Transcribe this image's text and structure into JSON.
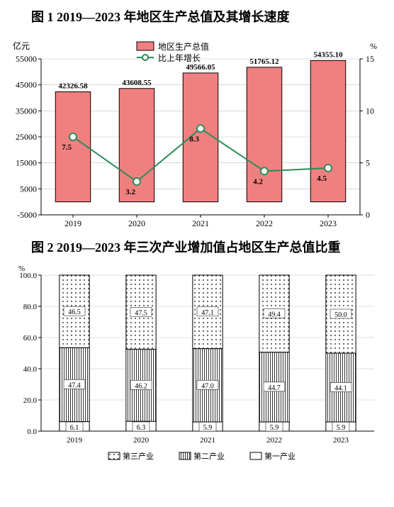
{
  "chart1": {
    "title": "图 1 2019—2023 年地区生产总值及其增长速度",
    "type": "bar+line",
    "yleft_label": "亿元",
    "yright_label": "%",
    "categories": [
      "2019",
      "2020",
      "2021",
      "2022",
      "2023"
    ],
    "bar_values": [
      42326.58,
      43608.55,
      49566.05,
      51765.12,
      54355.1
    ],
    "line_values": [
      7.5,
      3.2,
      8.3,
      4.2,
      4.5
    ],
    "bar_value_labels": [
      "42326.58",
      "43608.55",
      "49566.05",
      "51765.12",
      "54355.10"
    ],
    "line_value_labels": [
      "7.5",
      "3.2",
      "8.3",
      "4.2",
      "4.5"
    ],
    "yleft_lim": [
      -5000,
      55000
    ],
    "yleft_ticks": [
      -5000,
      5000,
      15000,
      25000,
      35000,
      45000,
      55000
    ],
    "yright_lim": [
      0,
      15
    ],
    "yright_ticks": [
      0,
      5,
      10,
      15
    ],
    "bar_color": "#f08080",
    "bar_border": "#000000",
    "line_color": "#2e8b57",
    "marker_fill": "#ffffff",
    "marker_stroke": "#2e8b57",
    "grid_color": "#bfbfbf",
    "axis_color": "#000000",
    "label_fontsize": 12,
    "legend": {
      "bar": "地区生产总值",
      "line": "比上年增长"
    },
    "bar_width": 0.55
  },
  "chart2": {
    "title": "图 2 2019—2023 年三次产业增加值占地区生产总值比重",
    "type": "stacked-bar",
    "ylabel": "%",
    "categories": [
      "2019",
      "2020",
      "2021",
      "2022",
      "2023"
    ],
    "series": [
      {
        "name": "第三产业",
        "values": [
          46.5,
          47.5,
          47.1,
          49.4,
          50.0
        ],
        "pattern": "dots",
        "label_pos": "top"
      },
      {
        "name": "第二产业",
        "values": [
          47.4,
          46.2,
          47.0,
          44.7,
          44.1
        ],
        "pattern": "vlines",
        "label_pos": "mid"
      },
      {
        "name": "第一产业",
        "values": [
          6.1,
          6.3,
          5.9,
          5.9,
          5.9
        ],
        "pattern": "none",
        "label_pos": "bot"
      }
    ],
    "ylim": [
      0,
      100
    ],
    "yticks": [
      0,
      20,
      40,
      60,
      80,
      100
    ],
    "ytick_labels": [
      "0.0",
      "20.0",
      "40.0",
      "60.0",
      "80.0",
      "100.0"
    ],
    "bar_border": "#000000",
    "grid_color": "#bfbfbf",
    "label_fontsize": 11,
    "legend_labels": [
      "第三产业",
      "第二产业",
      "第一产业"
    ],
    "bar_width": 0.45
  }
}
